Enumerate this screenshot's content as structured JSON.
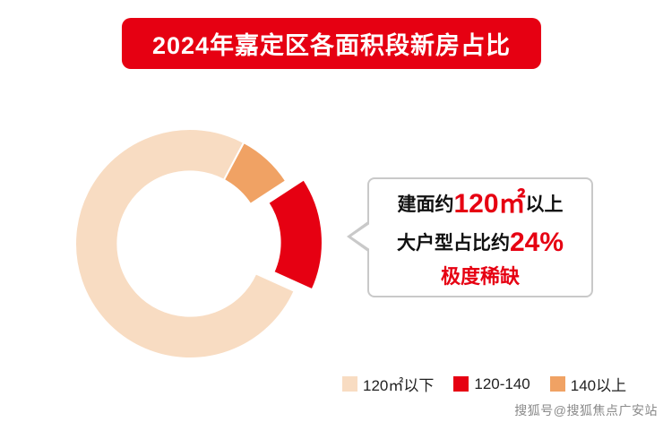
{
  "title": {
    "text": "2024年嘉定区各面积段新房占比",
    "bg_color": "#e60012",
    "text_color": "#ffffff"
  },
  "chart_data": {
    "type": "pie",
    "subtype": "donut",
    "title": "2024年嘉定区各面积段新房占比",
    "start_angle_deg_clockwise_from_top": 28,
    "inner_radius_ratio": 0.63,
    "slices": [
      {
        "label": "140以上",
        "value": 8,
        "color": "#f0a264",
        "exploded": false
      },
      {
        "label": "120-140",
        "value": 16,
        "color": "#e60012",
        "exploded": true
      },
      {
        "label": "120㎡以下",
        "value": 76,
        "color": "#f8dcc2",
        "exploded": false
      }
    ],
    "legend": [
      {
        "label": "120㎡以下",
        "color": "#f8dcc2"
      },
      {
        "label": "120-140",
        "color": "#e60012"
      },
      {
        "label": "140以上",
        "color": "#f0a264"
      }
    ],
    "legend_position": "bottom-right",
    "annotation": "建面约120㎡以上 大户型占比约24% 极度稀缺"
  },
  "callout": {
    "line1_prefix": "建面约",
    "line1_value": "120㎡",
    "line1_suffix": "以上",
    "line2_prefix": "大户型占比约",
    "line2_value": "24%",
    "line3": "极度稀缺",
    "accent_color": "#e60012"
  },
  "watermark": "搜狐号@搜狐焦点广安站"
}
